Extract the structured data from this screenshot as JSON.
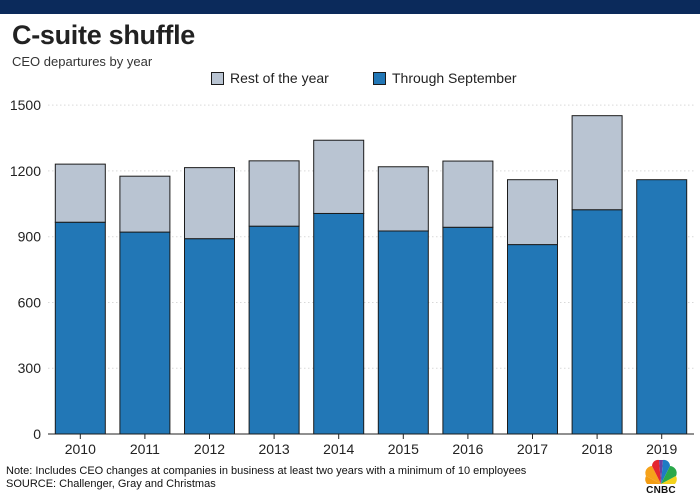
{
  "header": {
    "title": "C-suite shuffle",
    "subtitle": "CEO departures by year"
  },
  "footer": {
    "note": "Note: Includes CEO changes at companies in business at least two years with a minimum of 10 employees",
    "source": "SOURCE: Challenger, Gray and Christmas",
    "logo_text": "CNBC"
  },
  "chart_data": {
    "type": "bar",
    "stacked": true,
    "categories": [
      "2010",
      "2011",
      "2012",
      "2013",
      "2014",
      "2015",
      "2016",
      "2017",
      "2018",
      "2019"
    ],
    "series": [
      {
        "name": "Through September",
        "color": "#2277b6",
        "values": [
          966,
          921,
          891,
          948,
          1006,
          926,
          943,
          864,
          1023,
          1160
        ]
      },
      {
        "name": "Rest of the year",
        "color": "#b9c4d2",
        "values": [
          265,
          255,
          324,
          298,
          334,
          293,
          302,
          296,
          429,
          0
        ]
      }
    ],
    "legend": [
      "Rest of the year",
      "Through September"
    ],
    "legend_position": "top",
    "y_ticks": [
      0,
      300,
      600,
      900,
      1200,
      1500
    ],
    "ylim": [
      0,
      1560
    ],
    "grid": true
  }
}
